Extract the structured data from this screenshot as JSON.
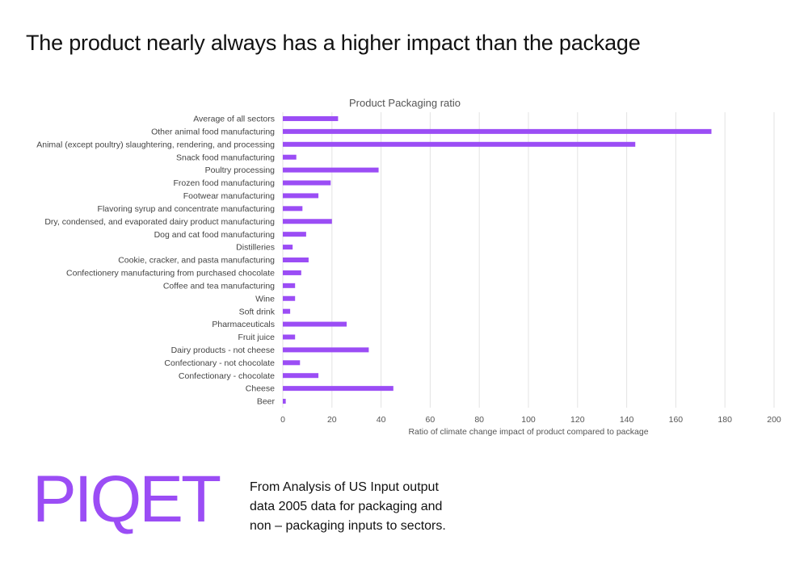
{
  "headline": "The product nearly always has a higher impact than the package",
  "logo": {
    "text": "PIQET",
    "color": "#9B4DF5"
  },
  "source_note": "From Analysis of US Input output data 2005 data for packaging and non – packaging inputs to sectors.",
  "chart_data": {
    "type": "bar",
    "orientation": "horizontal",
    "title": "Product Packaging ratio",
    "xlabel": "Ratio of climate change impact of product compared to package",
    "ylabel": "",
    "xlim": [
      0,
      200
    ],
    "xticks": [
      0,
      20,
      40,
      60,
      80,
      100,
      120,
      140,
      160,
      180,
      200
    ],
    "grid": "vertical",
    "bar_color": "#9B4DF5",
    "categories": [
      "Average of all sectors",
      "Other animal food manufacturing",
      "Animal (except poultry) slaughtering, rendering, and processing",
      "Snack food manufacturing",
      "Poultry processing",
      "Frozen food manufacturing",
      "Footwear manufacturing",
      "Flavoring syrup and concentrate manufacturing",
      "Dry, condensed, and evaporated dairy product manufacturing",
      "Dog and cat food manufacturing",
      "Distilleries",
      "Cookie, cracker, and pasta manufacturing",
      "Confectionery manufacturing from purchased chocolate",
      "Coffee and tea manufacturing",
      "Wine",
      "Soft drink",
      "Pharmaceuticals",
      "Fruit juice",
      "Dairy products - not cheese",
      "Confectionary - not chocolate",
      "Confectionary - chocolate",
      "Cheese",
      "Beer"
    ],
    "values": [
      22.5,
      174.5,
      143.5,
      5.5,
      39,
      19.5,
      14.5,
      8,
      20,
      9.5,
      4,
      10.5,
      7.5,
      5,
      5,
      3,
      26,
      5,
      35,
      7,
      14.5,
      45,
      1.2
    ]
  }
}
